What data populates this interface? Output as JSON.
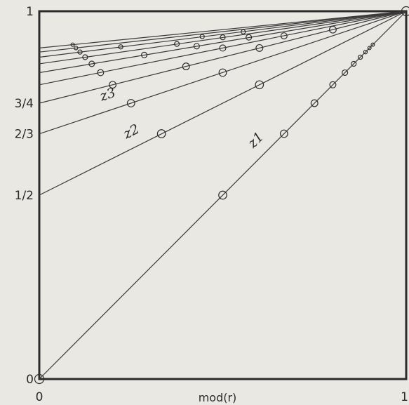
{
  "chart_data": {
    "type": "line",
    "title": "",
    "xlabel": "mod(r)",
    "ylabel": "",
    "xlim": [
      0,
      1
    ],
    "ylim": [
      0,
      1
    ],
    "grid": false,
    "legend": "none",
    "x_ticks": [
      {
        "value": 0,
        "label": "0"
      },
      {
        "value": 1,
        "label": "1"
      }
    ],
    "y_ticks": [
      {
        "value": 0,
        "label": "0"
      },
      {
        "value": 0.5,
        "label": "1/2"
      },
      {
        "value": 0.6667,
        "label": "2/3"
      },
      {
        "value": 0.75,
        "label": "3/4"
      },
      {
        "value": 1,
        "label": "1"
      }
    ],
    "series": [
      {
        "name": "z1",
        "intercept": 0.0,
        "markers": [
          {
            "x": 0,
            "y": 0
          },
          {
            "x": 0.5,
            "y": 0.5
          },
          {
            "x": 0.667,
            "y": 0.667
          },
          {
            "x": 0.75,
            "y": 0.75
          },
          {
            "x": 0.8,
            "y": 0.8
          },
          {
            "x": 0.833,
            "y": 0.833
          },
          {
            "x": 0.857,
            "y": 0.857
          },
          {
            "x": 0.875,
            "y": 0.875
          },
          {
            "x": 0.889,
            "y": 0.889
          },
          {
            "x": 0.9,
            "y": 0.9
          },
          {
            "x": 0.909,
            "y": 0.909
          },
          {
            "x": 1,
            "y": 1
          }
        ]
      },
      {
        "name": "z2",
        "intercept": 0.5,
        "markers": [
          {
            "x": 0.333,
            "y": 0.667
          },
          {
            "x": 0.6,
            "y": 0.8
          }
        ]
      },
      {
        "name": "z3",
        "intercept": 0.6667,
        "markers": [
          {
            "x": 0.25,
            "y": 0.75
          },
          {
            "x": 0.5,
            "y": 0.833
          }
        ]
      },
      {
        "name": "",
        "intercept": 0.75,
        "markers": [
          {
            "x": 0.2,
            "y": 0.8
          },
          {
            "x": 0.4,
            "y": 0.85
          },
          {
            "x": 0.6,
            "y": 0.9
          },
          {
            "x": 0.8,
            "y": 0.95
          }
        ]
      },
      {
        "name": "",
        "intercept": 0.8,
        "markers": [
          {
            "x": 0.167,
            "y": 0.833
          },
          {
            "x": 0.5,
            "y": 0.9
          },
          {
            "x": 0.667,
            "y": 0.933
          }
        ]
      },
      {
        "name": "",
        "intercept": 0.833,
        "markers": [
          {
            "x": 0.143,
            "y": 0.857
          },
          {
            "x": 0.286,
            "y": 0.881
          },
          {
            "x": 0.429,
            "y": 0.905
          },
          {
            "x": 0.571,
            "y": 0.929
          }
        ]
      },
      {
        "name": "",
        "intercept": 0.857,
        "markers": [
          {
            "x": 0.125,
            "y": 0.875
          },
          {
            "x": 0.375,
            "y": 0.911
          },
          {
            "x": 0.5,
            "y": 0.929
          }
        ]
      },
      {
        "name": "",
        "intercept": 0.875,
        "markers": [
          {
            "x": 0.111,
            "y": 0.889
          },
          {
            "x": 0.222,
            "y": 0.903
          },
          {
            "x": 0.444,
            "y": 0.931
          },
          {
            "x": 0.556,
            "y": 0.944
          }
        ]
      },
      {
        "name": "",
        "intercept": 0.889,
        "markers": [
          {
            "x": 0.1,
            "y": 0.9
          }
        ]
      },
      {
        "name": "",
        "intercept": 0.9,
        "markers": [
          {
            "x": 0.091,
            "y": 0.909
          }
        ]
      }
    ]
  }
}
